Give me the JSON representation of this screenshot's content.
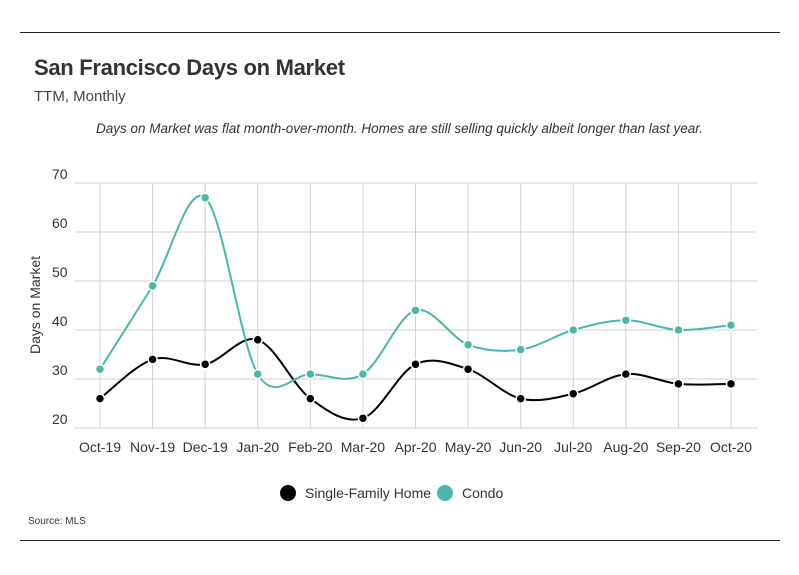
{
  "header": {
    "title": "San Francisco Days on Market",
    "subtitle": "TTM, Monthly",
    "annotation": "Days on Market was flat month-over-month. Homes are still selling quickly albeit longer than last year."
  },
  "footer": {
    "source": "Source:  MLS"
  },
  "chart_data": {
    "type": "line",
    "ylabel": "Days on Market",
    "ylim": [
      20,
      70
    ],
    "yticks": [
      20,
      30,
      40,
      50,
      60,
      70
    ],
    "categories": [
      "Oct-19",
      "Nov-19",
      "Dec-19",
      "Jan-20",
      "Feb-20",
      "Mar-20",
      "Apr-20",
      "May-20",
      "Jun-20",
      "Jul-20",
      "Aug-20",
      "Sep-20",
      "Oct-20"
    ],
    "series": [
      {
        "name": "Single-Family Home",
        "color": "#000000",
        "values": [
          26,
          34,
          33,
          38,
          26,
          22,
          33,
          32,
          26,
          27,
          31,
          29,
          29
        ]
      },
      {
        "name": "Condo",
        "color": "#4ab8a8",
        "values": [
          32,
          49,
          67,
          31,
          31,
          31,
          44,
          37,
          36,
          40,
          42,
          40,
          41
        ]
      }
    ],
    "grid": true,
    "legend": "bottom-center"
  }
}
